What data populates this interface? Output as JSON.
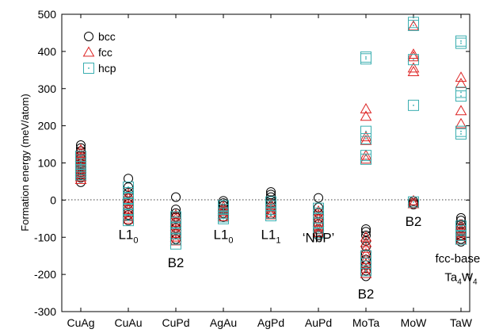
{
  "chart_data": {
    "type": "scatter",
    "title": "",
    "xlabel": "",
    "ylabel": "Formation energy (meV/atom)",
    "ylim": [
      -300,
      500
    ],
    "yticks": [
      -300,
      -200,
      -100,
      0,
      100,
      200,
      300,
      400,
      500
    ],
    "categories": [
      "CuAg",
      "CuAu",
      "CuPd",
      "AgAu",
      "AgPd",
      "AuPd",
      "MoTa",
      "MoW",
      "TaW"
    ],
    "zero_line": "dotted",
    "grid": false,
    "legend_position": "top-left",
    "series": [
      {
        "name": "bcc",
        "marker": "circle",
        "color": "#000000",
        "points": [
          [
            "CuAg",
            148
          ],
          [
            "CuAg",
            140
          ],
          [
            "CuAg",
            132
          ],
          [
            "CuAg",
            120
          ],
          [
            "CuAg",
            112
          ],
          [
            "CuAg",
            105
          ],
          [
            "CuAg",
            97
          ],
          [
            "CuAg",
            90
          ],
          [
            "CuAg",
            82
          ],
          [
            "CuAg",
            75
          ],
          [
            "CuAg",
            68
          ],
          [
            "CuAg",
            60
          ],
          [
            "CuAg",
            48
          ],
          [
            "CuAu",
            58
          ],
          [
            "CuAu",
            35
          ],
          [
            "CuAu",
            20
          ],
          [
            "CuAu",
            5
          ],
          [
            "CuAu",
            -10
          ],
          [
            "CuAu",
            -25
          ],
          [
            "CuAu",
            -40
          ],
          [
            "CuAu",
            -55
          ],
          [
            "CuPd",
            8
          ],
          [
            "CuPd",
            -25
          ],
          [
            "CuPd",
            -35
          ],
          [
            "CuPd",
            -45
          ],
          [
            "CuPd",
            -60
          ],
          [
            "CuPd",
            -75
          ],
          [
            "CuPd",
            -90
          ],
          [
            "CuPd",
            -105
          ],
          [
            "AgAu",
            -2
          ],
          [
            "AgAu",
            -8
          ],
          [
            "AgAu",
            -15
          ],
          [
            "AgAu",
            -25
          ],
          [
            "AgAu",
            -35
          ],
          [
            "AgAu",
            -45
          ],
          [
            "AgPd",
            22
          ],
          [
            "AgPd",
            15
          ],
          [
            "AgPd",
            8
          ],
          [
            "AgPd",
            0
          ],
          [
            "AgPd",
            -8
          ],
          [
            "AgPd",
            -18
          ],
          [
            "AgPd",
            -28
          ],
          [
            "AgPd",
            -38
          ],
          [
            "AuPd",
            6
          ],
          [
            "AuPd",
            -20
          ],
          [
            "AuPd",
            -35
          ],
          [
            "AuPd",
            -50
          ],
          [
            "AuPd",
            -65
          ],
          [
            "AuPd",
            -78
          ],
          [
            "AuPd",
            -90
          ],
          [
            "AuPd",
            -95
          ],
          [
            "MoTa",
            -78
          ],
          [
            "MoTa",
            -85
          ],
          [
            "MoTa",
            -95
          ],
          [
            "MoTa",
            -110
          ],
          [
            "MoTa",
            -125
          ],
          [
            "MoTa",
            -145
          ],
          [
            "MoTa",
            -160
          ],
          [
            "MoTa",
            -175
          ],
          [
            "MoTa",
            -190
          ],
          [
            "MoTa",
            -205
          ],
          [
            "MoW",
            -3
          ],
          [
            "MoW",
            -8
          ],
          [
            "MoW",
            -12
          ],
          [
            "TaW",
            -48
          ],
          [
            "TaW",
            -55
          ],
          [
            "TaW",
            -65
          ],
          [
            "TaW",
            -75
          ],
          [
            "TaW",
            -85
          ],
          [
            "TaW",
            -95
          ],
          [
            "TaW",
            -105
          ],
          [
            "TaW",
            -112
          ]
        ]
      },
      {
        "name": "fcc",
        "marker": "triangle",
        "color": "#dd2222",
        "points": [
          [
            "CuAg",
            135
          ],
          [
            "CuAg",
            125
          ],
          [
            "CuAg",
            115
          ],
          [
            "CuAg",
            108
          ],
          [
            "CuAg",
            100
          ],
          [
            "CuAg",
            92
          ],
          [
            "CuAg",
            85
          ],
          [
            "CuAg",
            78
          ],
          [
            "CuAg",
            70
          ],
          [
            "CuAg",
            62
          ],
          [
            "CuAg",
            55
          ],
          [
            "CuAu",
            15
          ],
          [
            "CuAu",
            5
          ],
          [
            "CuAu",
            -5
          ],
          [
            "CuAu",
            -15
          ],
          [
            "CuAu",
            -25
          ],
          [
            "CuAu",
            -35
          ],
          [
            "CuAu",
            -45
          ],
          [
            "CuAu",
            -52
          ],
          [
            "CuPd",
            -40
          ],
          [
            "CuPd",
            -50
          ],
          [
            "CuPd",
            -60
          ],
          [
            "CuPd",
            -70
          ],
          [
            "CuPd",
            -80
          ],
          [
            "CuPd",
            -90
          ],
          [
            "CuPd",
            -100
          ],
          [
            "CuPd",
            -110
          ],
          [
            "AgAu",
            -18
          ],
          [
            "AgAu",
            -25
          ],
          [
            "AgAu",
            -30
          ],
          [
            "AgAu",
            -38
          ],
          [
            "AgAu",
            -45
          ],
          [
            "AgPd",
            -12
          ],
          [
            "AgPd",
            -20
          ],
          [
            "AgPd",
            -28
          ],
          [
            "AgPd",
            -35
          ],
          [
            "AgPd",
            -40
          ],
          [
            "AuPd",
            -30
          ],
          [
            "AuPd",
            -40
          ],
          [
            "AuPd",
            -50
          ],
          [
            "AuPd",
            -60
          ],
          [
            "AuPd",
            -70
          ],
          [
            "AuPd",
            -80
          ],
          [
            "AuPd",
            -88
          ],
          [
            "MoTa",
            245
          ],
          [
            "MoTa",
            225
          ],
          [
            "MoTa",
            170
          ],
          [
            "MoTa",
            160
          ],
          [
            "MoTa",
            120
          ],
          [
            "MoTa",
            110
          ],
          [
            "MoTa",
            -100
          ],
          [
            "MoTa",
            -115
          ],
          [
            "MoTa",
            -130
          ],
          [
            "MoTa",
            -145
          ],
          [
            "MoTa",
            -160
          ],
          [
            "MoTa",
            -172
          ],
          [
            "MoTa",
            -185
          ],
          [
            "MoTa",
            -198
          ],
          [
            "MoW",
            468
          ],
          [
            "MoW",
            392
          ],
          [
            "MoW",
            385
          ],
          [
            "MoW",
            355
          ],
          [
            "MoW",
            345
          ],
          [
            "MoW",
            -2
          ],
          [
            "MoW",
            -10
          ],
          [
            "TaW",
            330
          ],
          [
            "TaW",
            313
          ],
          [
            "TaW",
            240
          ],
          [
            "TaW",
            205
          ],
          [
            "TaW",
            -68
          ],
          [
            "TaW",
            -78
          ],
          [
            "TaW",
            -88
          ],
          [
            "TaW",
            -98
          ],
          [
            "TaW",
            -108
          ]
        ]
      },
      {
        "name": "hcp",
        "marker": "square",
        "color": "#3aaeb0",
        "points": [
          [
            "CuAg",
            118
          ],
          [
            "CuAg",
            108
          ],
          [
            "CuAg",
            98
          ],
          [
            "CuAg",
            90
          ],
          [
            "CuAg",
            82
          ],
          [
            "CuAg",
            75
          ],
          [
            "CuAg",
            68
          ],
          [
            "CuAu",
            35
          ],
          [
            "CuAu",
            20
          ],
          [
            "CuAu",
            5
          ],
          [
            "CuAu",
            -10
          ],
          [
            "CuAu",
            -25
          ],
          [
            "CuAu",
            -40
          ],
          [
            "CuAu",
            -55
          ],
          [
            "CuPd",
            -45
          ],
          [
            "CuPd",
            -60
          ],
          [
            "CuPd",
            -75
          ],
          [
            "CuPd",
            -90
          ],
          [
            "CuPd",
            -105
          ],
          [
            "CuPd",
            -118
          ],
          [
            "AgAu",
            -15
          ],
          [
            "AgAu",
            -25
          ],
          [
            "AgAu",
            -35
          ],
          [
            "AgAu",
            -45
          ],
          [
            "AgAu",
            -50
          ],
          [
            "AgPd",
            -5
          ],
          [
            "AgPd",
            -15
          ],
          [
            "AgPd",
            -25
          ],
          [
            "AgPd",
            -35
          ],
          [
            "AgPd",
            -42
          ],
          [
            "AuPd",
            -22
          ],
          [
            "AuPd",
            -35
          ],
          [
            "AuPd",
            -48
          ],
          [
            "AuPd",
            -62
          ],
          [
            "AuPd",
            -75
          ],
          [
            "AuPd",
            -88
          ],
          [
            "MoTa",
            385
          ],
          [
            "MoTa",
            380
          ],
          [
            "MoTa",
            185
          ],
          [
            "MoTa",
            165
          ],
          [
            "MoTa",
            120
          ],
          [
            "MoTa",
            110
          ],
          [
            "MoTa",
            -150
          ],
          [
            "MoTa",
            -170
          ],
          [
            "MoTa",
            -190
          ],
          [
            "MoW",
            478
          ],
          [
            "MoW",
            470
          ],
          [
            "MoW",
            378
          ],
          [
            "MoW",
            255
          ],
          [
            "MoW",
            -5
          ],
          [
            "TaW",
            428
          ],
          [
            "TaW",
            422
          ],
          [
            "TaW",
            290
          ],
          [
            "TaW",
            280
          ],
          [
            "TaW",
            185
          ],
          [
            "TaW",
            178
          ],
          [
            "TaW",
            -70
          ],
          [
            "TaW",
            -82
          ],
          [
            "TaW",
            -95
          ],
          [
            "TaW",
            -105
          ]
        ]
      }
    ],
    "annotations": [
      {
        "category": "CuAu",
        "y": -105,
        "text": "L1",
        "sub": "0"
      },
      {
        "category": "CuPd",
        "y": -180,
        "text": "B2",
        "sub": ""
      },
      {
        "category": "AgAu",
        "y": -105,
        "text": "L1",
        "sub": "0"
      },
      {
        "category": "AgPd",
        "y": -105,
        "text": "L1",
        "sub": "1"
      },
      {
        "category": "AuPd",
        "y": -113,
        "text": "‘NbP’",
        "sub": ""
      },
      {
        "category": "MoTa",
        "y": -265,
        "text": "B2",
        "sub": ""
      },
      {
        "category": "MoW",
        "y": -70,
        "text": "B2",
        "sub": ""
      },
      {
        "category": "TaW",
        "y": -168,
        "text": "fcc-based",
        "sub": ""
      },
      {
        "category": "TaW",
        "y": -218,
        "text": "Ta4W4",
        "parts": [
          "Ta",
          "4",
          "W",
          "4"
        ]
      }
    ]
  }
}
